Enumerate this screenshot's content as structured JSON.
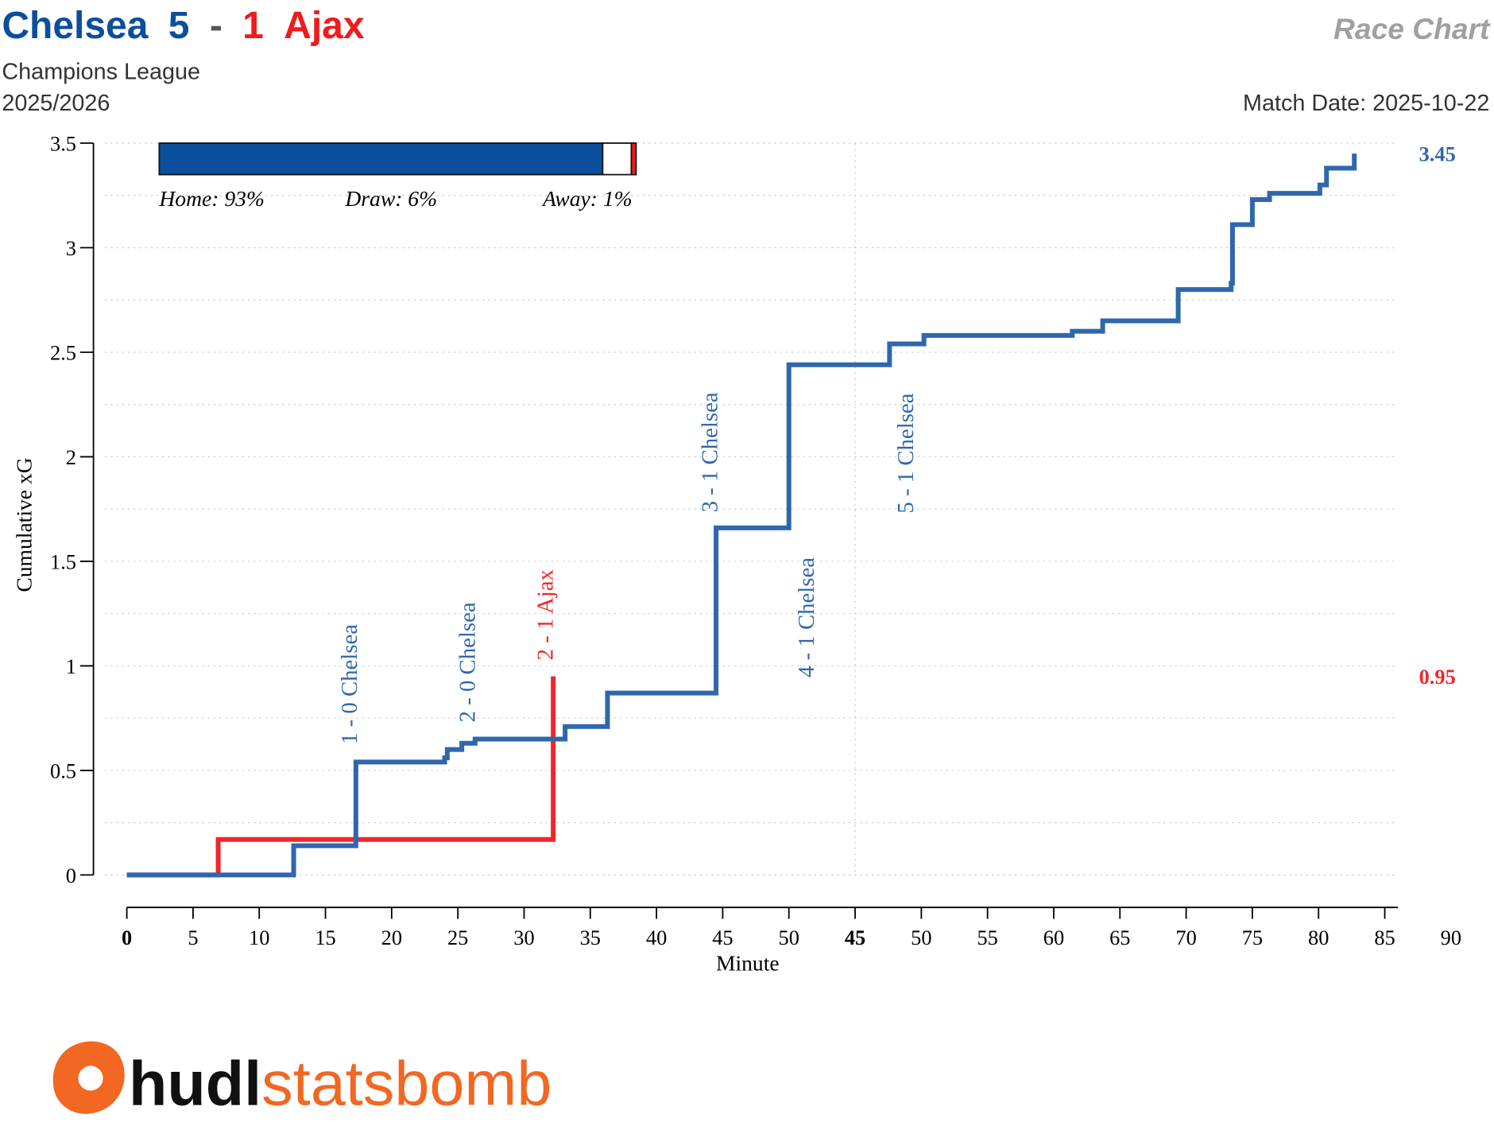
{
  "header": {
    "home_team": "Chelsea",
    "home_score": 5,
    "separator": "-",
    "away_score": 1,
    "away_team": "Ajax",
    "competition": "Champions League",
    "season": "2025/2026",
    "chart_name": "Race Chart",
    "match_date": "Match Date: 2025-10-22"
  },
  "win_probability": {
    "categories": [
      "Home",
      "Draw",
      "Away"
    ],
    "values": [
      93,
      6,
      1
    ],
    "value_labels": [
      "Home: 93%",
      "Draw: 6%",
      "Away: 1%"
    ],
    "colors": [
      "#0b4f9c",
      "#ffffff",
      "#ee1c1c"
    ]
  },
  "chart_data": {
    "type": "step",
    "x_label": "Minute",
    "y_label": "Cumulative xG",
    "xlim": [
      0,
      96
    ],
    "ylim": [
      0,
      3.5
    ],
    "xticks": [
      0,
      5,
      10,
      15,
      20,
      25,
      30,
      35,
      40,
      45,
      50,
      {
        "value": 55,
        "label": "45"
      },
      {
        "value": 60,
        "label": "50"
      },
      {
        "value": 65,
        "label": "55"
      },
      {
        "value": 70,
        "label": "60"
      },
      {
        "value": 75,
        "label": "65"
      },
      {
        "value": 80,
        "label": "70"
      },
      {
        "value": 85,
        "label": "75"
      },
      {
        "value": 90,
        "label": "80"
      },
      {
        "value": 95,
        "label": "85"
      },
      {
        "value": 100,
        "label": "90"
      }
    ],
    "yticks": [
      0,
      0.5,
      1,
      1.5,
      2,
      2.5,
      3,
      3.5
    ],
    "minor_yticks": [
      0.25,
      0.75,
      1.25,
      1.75,
      2.25,
      2.75,
      3.25
    ],
    "half_time_x": 55,
    "grid": true,
    "series": [
      {
        "color": "#2f67ad",
        "x": [
          0,
          12.6,
          17.3,
          24.0,
          24.2,
          25.3,
          26.3,
          33.1,
          36.3,
          44.5,
          50.0,
          57.6,
          60.2,
          71.4,
          73.7,
          79.4,
          83.4,
          83.5,
          85.0,
          86.3,
          90.1,
          90.6,
          92.7
        ],
        "values": [
          0,
          0.14,
          0.54,
          0.56,
          0.6,
          0.63,
          0.65,
          0.71,
          0.87,
          1.66,
          2.44,
          2.54,
          2.58,
          2.6,
          2.65,
          2.8,
          2.83,
          3.11,
          3.23,
          3.26,
          3.3,
          3.38,
          3.45
        ]
      },
      {
        "color": "#f0262a",
        "x": [
          0,
          6.9,
          32.2
        ],
        "values": [
          0,
          0.17,
          0.95
        ]
      }
    ],
    "annotations": [
      {
        "text": "1 - 0 Chelsea",
        "x": 16.8,
        "series": 0
      },
      {
        "text": "2 - 0 Chelsea",
        "x": 25.7,
        "series": 0
      },
      {
        "text": "2 - 1 Ajax",
        "x": 31.6,
        "series": 1
      },
      {
        "text": "3 - 1 Chelsea",
        "x": 44.0,
        "series": 0
      },
      {
        "text": "4 - 1 Chelsea",
        "x": 51.3,
        "series": 0
      },
      {
        "text": "5 - 1 Chelsea",
        "x": 58.8,
        "series": 0
      }
    ]
  },
  "logo": {
    "part1": "hudl",
    "part2": "statsbomb"
  }
}
